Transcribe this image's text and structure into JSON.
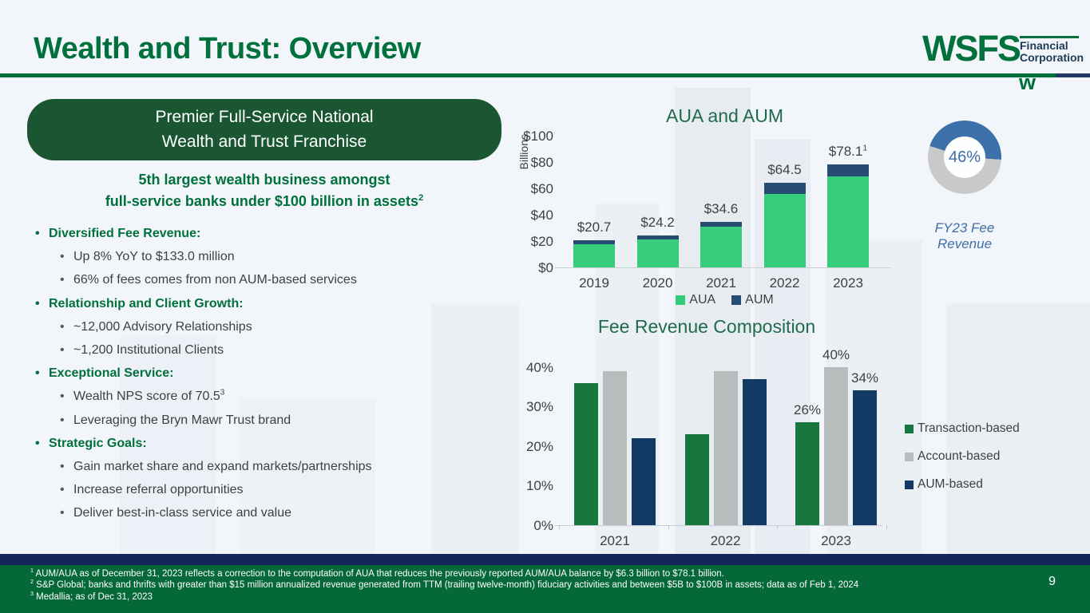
{
  "slide": {
    "title": "Wealth and Trust: Overview",
    "page_number": "9"
  },
  "logo": {
    "wordmark": "WSFS",
    "sub_line1": "Financial",
    "sub_line2": "Corporation",
    "rule_mark": "w"
  },
  "colors": {
    "brand_green": "#00703c",
    "banner_green": "#1a5632",
    "footer_green": "#056839",
    "footer_navy": "#13265a",
    "rule_navy": "#1f3864",
    "aua_green": "#35cc7c",
    "aum_navy": "#264c74",
    "transaction_green": "#17773f",
    "account_gray": "#b9bcbd",
    "aum_based_navy": "#123a64",
    "donut_blue": "#3d71a9",
    "donut_gray": "#c9c9c9"
  },
  "left_panel": {
    "banner_line1": "Premier Full-Service National",
    "banner_line2": "Wealth and Trust Franchise",
    "subtitle_line1": "5th largest wealth business amongst",
    "subtitle_line2": "full-service banks under $100 billion in assets",
    "subtitle_sup": "2",
    "bullets": [
      {
        "level": 1,
        "text": "Diversified Fee Revenue:"
      },
      {
        "level": 2,
        "text": "Up 8% YoY to $133.0 million"
      },
      {
        "level": 2,
        "text": "66% of fees comes from non AUM-based services"
      },
      {
        "level": 1,
        "text": "Relationship and Client Growth:"
      },
      {
        "level": 2,
        "text": "~12,000 Advisory Relationships"
      },
      {
        "level": 2,
        "text": "~1,200 Institutional Clients"
      },
      {
        "level": 1,
        "text": "Exceptional Service:"
      },
      {
        "level": 2,
        "text": "Wealth NPS score of 70.5",
        "sup": "3"
      },
      {
        "level": 2,
        "text": "Leveraging the Bryn Mawr Trust brand"
      },
      {
        "level": 1,
        "text": "Strategic Goals:"
      },
      {
        "level": 2,
        "text": "Gain market share and expand markets/partnerships"
      },
      {
        "level": 2,
        "text": "Increase referral opportunities"
      },
      {
        "level": 2,
        "text": "Deliver best-in-class service and value"
      }
    ]
  },
  "chart_data": [
    {
      "type": "bar",
      "stacked": true,
      "title": "AUA and AUM",
      "ylabel": "Billions",
      "ylim": [
        0,
        100
      ],
      "yticks": [
        "$0",
        "$20",
        "$40",
        "$60",
        "$80",
        "$100"
      ],
      "ytick_values": [
        0,
        20,
        40,
        60,
        80,
        100
      ],
      "categories": [
        "2019",
        "2020",
        "2021",
        "2022",
        "2023"
      ],
      "series": [
        {
          "name": "AUA",
          "color": "#35cc7c",
          "values": [
            17.7,
            21.0,
            31.0,
            56.0,
            69.3
          ]
        },
        {
          "name": "AUM",
          "color": "#264c74",
          "values": [
            3.0,
            3.2,
            3.6,
            8.5,
            8.8
          ]
        }
      ],
      "total_labels": [
        "$20.7",
        "$24.2",
        "$34.6",
        "$64.5",
        "$78.1"
      ],
      "total_label_sups": [
        "",
        "",
        "",
        "",
        "1"
      ],
      "legend_position": "bottom",
      "grid": false
    },
    {
      "type": "pie",
      "subtype": "donut",
      "value_pct": 46,
      "value_label": "46%",
      "caption_line1": "FY23 Fee",
      "caption_line2": "Revenue",
      "filled_color": "#3d71a9",
      "rest_color": "#c9c9c9",
      "start_deg": 288
    },
    {
      "type": "bar",
      "grouped": true,
      "title": "Fee Revenue Composition",
      "ylim": [
        0,
        40
      ],
      "yticks": [
        "0%",
        "10%",
        "20%",
        "30%",
        "40%"
      ],
      "ytick_values": [
        0,
        10,
        20,
        30,
        40
      ],
      "categories": [
        "2021",
        "2022",
        "2023"
      ],
      "series": [
        {
          "name": "Transaction-based",
          "color": "#17773f",
          "values": [
            36,
            23,
            26
          ]
        },
        {
          "name": "Account-based",
          "color": "#b9bcbd",
          "values": [
            39,
            39,
            40
          ]
        },
        {
          "name": "AUM-based",
          "color": "#123a64",
          "values": [
            22,
            37,
            34
          ]
        }
      ],
      "data_labels": [
        [
          null,
          null,
          "26%"
        ],
        [
          null,
          null,
          "40%"
        ],
        [
          null,
          null,
          "34%"
        ]
      ],
      "legend_position": "right",
      "grid": false
    }
  ],
  "footer": {
    "footnotes": [
      {
        "sup": "1",
        "text": "AUM/AUA as of December 31, 2023 reflects a correction to the computation of AUA that reduces the previously reported AUM/AUA balance by $6.3 billion to $78.1 billion."
      },
      {
        "sup": "2",
        "text": "S&P Global; banks and thrifts with greater than $15 million annualized revenue generated from TTM (trailing twelve-month) fiduciary activities and between $5B to $100B in assets; data as of Feb 1, 2024"
      },
      {
        "sup": "3",
        "text": "Medallia; as of Dec 31, 2023"
      }
    ]
  }
}
